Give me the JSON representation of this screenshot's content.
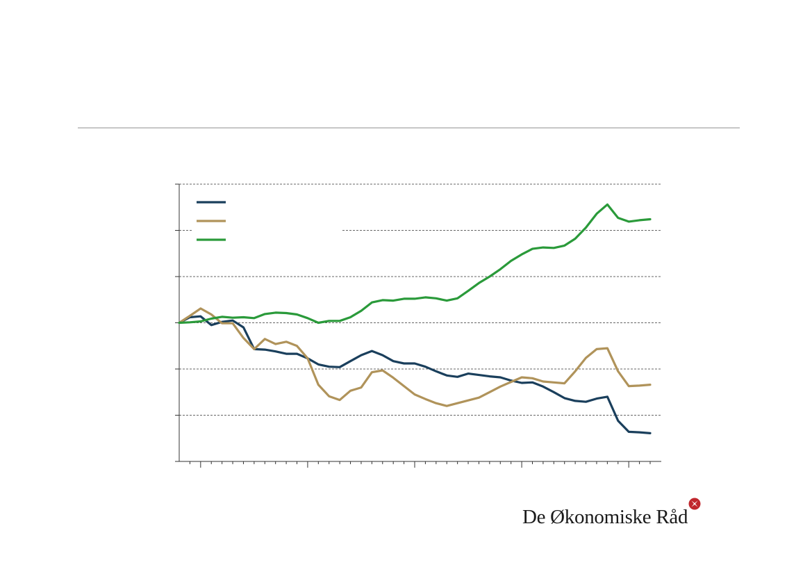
{
  "branding": {
    "logo_text": "De Økonomiske Råd",
    "logo_mark": "rosette-icon",
    "logo_color": "#c0272d"
  },
  "chart_data": {
    "type": "line",
    "title": "",
    "xlabel": "",
    "ylabel": "",
    "grid": "horizontal dashed",
    "legend": "top-left",
    "x": [
      0,
      1,
      2,
      3,
      4,
      5,
      6,
      7,
      8,
      9,
      10,
      11,
      12,
      13,
      14,
      15,
      16,
      17,
      18,
      19,
      20,
      21,
      22,
      23,
      24,
      25,
      26,
      27,
      28,
      29,
      30,
      31,
      32,
      33,
      34,
      35,
      36,
      37,
      38,
      39,
      40,
      41,
      42,
      43,
      44
    ],
    "ylim": [
      0,
      6
    ],
    "series": [
      {
        "name": "",
        "color": "#1a3f5c",
        "values": [
          3.0,
          3.12,
          3.14,
          2.95,
          3.02,
          3.05,
          2.9,
          2.43,
          2.42,
          2.38,
          2.33,
          2.33,
          2.23,
          2.1,
          2.05,
          2.04,
          2.17,
          2.3,
          2.39,
          2.3,
          2.17,
          2.12,
          2.12,
          2.05,
          1.95,
          1.86,
          1.83,
          1.9,
          1.87,
          1.84,
          1.82,
          1.75,
          1.7,
          1.71,
          1.62,
          1.5,
          1.37,
          1.31,
          1.29,
          1.36,
          1.4,
          0.88,
          0.64,
          0.63,
          0.61
        ]
      },
      {
        "name": "",
        "color": "#b0935a",
        "values": [
          3.0,
          3.15,
          3.31,
          3.18,
          2.99,
          2.99,
          2.67,
          2.43,
          2.65,
          2.54,
          2.59,
          2.5,
          2.23,
          1.66,
          1.41,
          1.33,
          1.53,
          1.6,
          1.93,
          1.97,
          1.81,
          1.63,
          1.45,
          1.35,
          1.26,
          1.2,
          1.26,
          1.32,
          1.38,
          1.5,
          1.62,
          1.72,
          1.82,
          1.8,
          1.73,
          1.71,
          1.69,
          1.95,
          2.24,
          2.43,
          2.45,
          1.95,
          1.63,
          1.64,
          1.66
        ]
      },
      {
        "name": "",
        "color": "#2a9a3a",
        "values": [
          3.0,
          3.01,
          3.03,
          3.09,
          3.13,
          3.11,
          3.12,
          3.1,
          3.19,
          3.22,
          3.21,
          3.18,
          3.1,
          3.0,
          3.04,
          3.04,
          3.12,
          3.26,
          3.44,
          3.49,
          3.48,
          3.52,
          3.52,
          3.55,
          3.53,
          3.48,
          3.53,
          3.69,
          3.86,
          4.0,
          4.16,
          4.34,
          4.48,
          4.6,
          4.63,
          4.62,
          4.67,
          4.82,
          5.06,
          5.36,
          5.56,
          5.27,
          5.19,
          5.22,
          5.24
        ]
      }
    ]
  }
}
